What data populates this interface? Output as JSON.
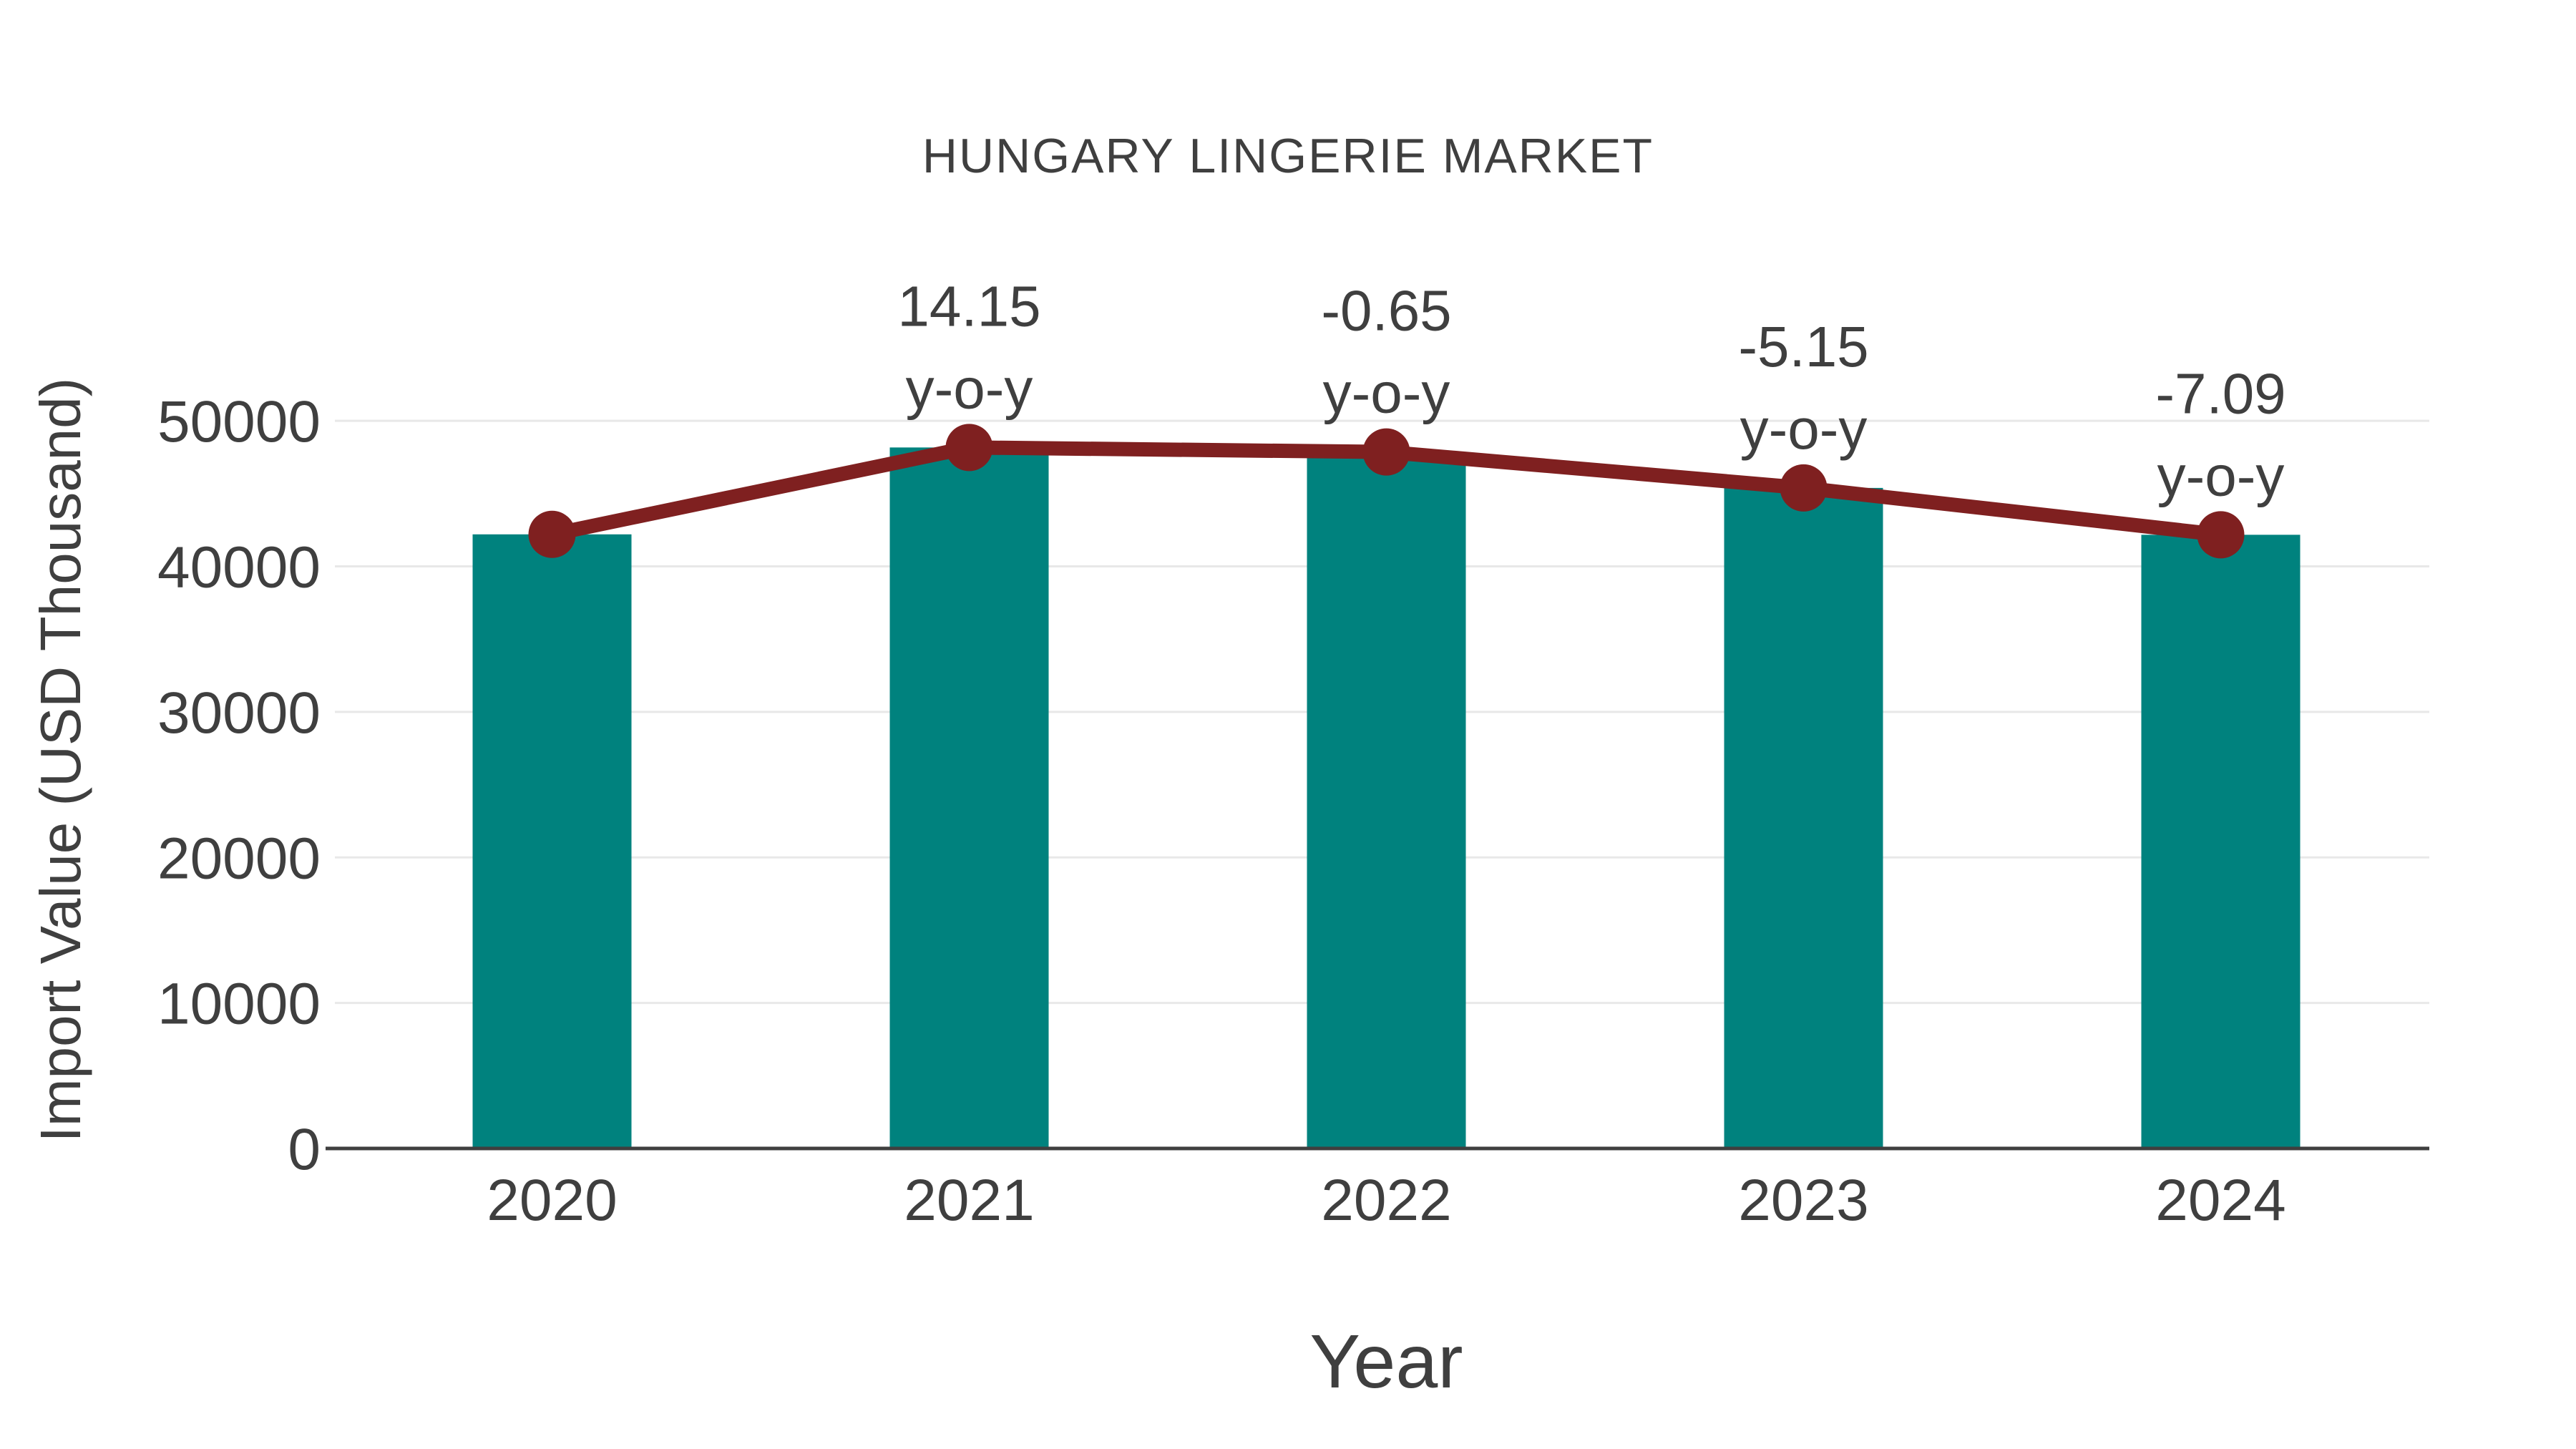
{
  "chart_data": {
    "type": "bar",
    "title": "HUNGARY LINGERIE MARKET",
    "xlabel": "Year",
    "ylabel": "Import Value (USD Thousand)",
    "categories": [
      "2020",
      "2021",
      "2022",
      "2023",
      "2024"
    ],
    "series": [
      {
        "name": "import-value-bars",
        "type": "bar",
        "values": [
          42200,
          48170,
          47860,
          45390,
          42170
        ]
      },
      {
        "name": "import-value-trend-line",
        "type": "line",
        "values": [
          42200,
          48170,
          47860,
          45390,
          42170
        ]
      }
    ],
    "annotations": [
      {
        "category": "2020",
        "lines": []
      },
      {
        "category": "2021",
        "lines": [
          "14.15",
          "y-o-y"
        ]
      },
      {
        "category": "2022",
        "lines": [
          "-0.65",
          "y-o-y"
        ]
      },
      {
        "category": "2023",
        "lines": [
          "-5.15",
          "y-o-y"
        ]
      },
      {
        "category": "2024",
        "lines": [
          "-7.09",
          "y-o-y"
        ]
      }
    ],
    "yticks": [
      0,
      10000,
      20000,
      30000,
      40000,
      50000
    ],
    "ytick_labels": [
      "0",
      "10000",
      "20000",
      "30000",
      "40000",
      "50000"
    ],
    "ylim": [
      0,
      53350
    ],
    "grid": true,
    "legend_position": "none",
    "colors": {
      "bar": "#00827e",
      "line": "#7f2020",
      "marker": "#7f2020",
      "text": "#3f3f3f",
      "grid": "#e8e8e8",
      "axis": "#3f3f3f"
    }
  }
}
